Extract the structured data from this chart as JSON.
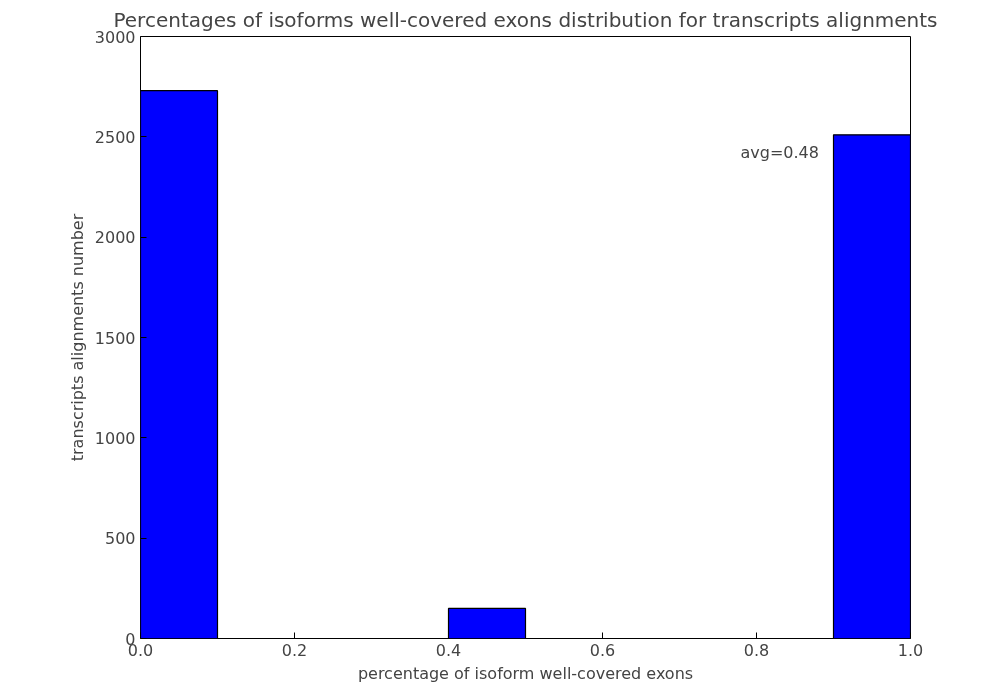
{
  "chart_data": {
    "type": "histogram",
    "title": "Percentages of isoforms well-covered exons distribution for transcripts alignments",
    "xlabel": "percentage of isoform well-covered exons",
    "ylabel": "transcripts alignments number",
    "bins": [
      0,
      0.1,
      0.2,
      0.3,
      0.4,
      0.5,
      0.6,
      0.7,
      0.8,
      0.9,
      1.0
    ],
    "values": [
      2730,
      0,
      0,
      null,
      150,
      0,
      null,
      0,
      0,
      2510
    ],
    "color": "#0000ff",
    "xlim": [
      0,
      1
    ],
    "ylim": [
      0,
      3000
    ],
    "xticks": [
      {
        "value": 0,
        "label": "0.0"
      },
      0.2,
      0.4,
      0.6,
      0.8,
      {
        "value": 1,
        "label": "1.0"
      }
    ],
    "yticks": [
      0,
      500,
      1000,
      1500,
      2000,
      2500,
      3000
    ],
    "annotations": [
      "avg=0.48"
    ],
    "grid": false
  }
}
